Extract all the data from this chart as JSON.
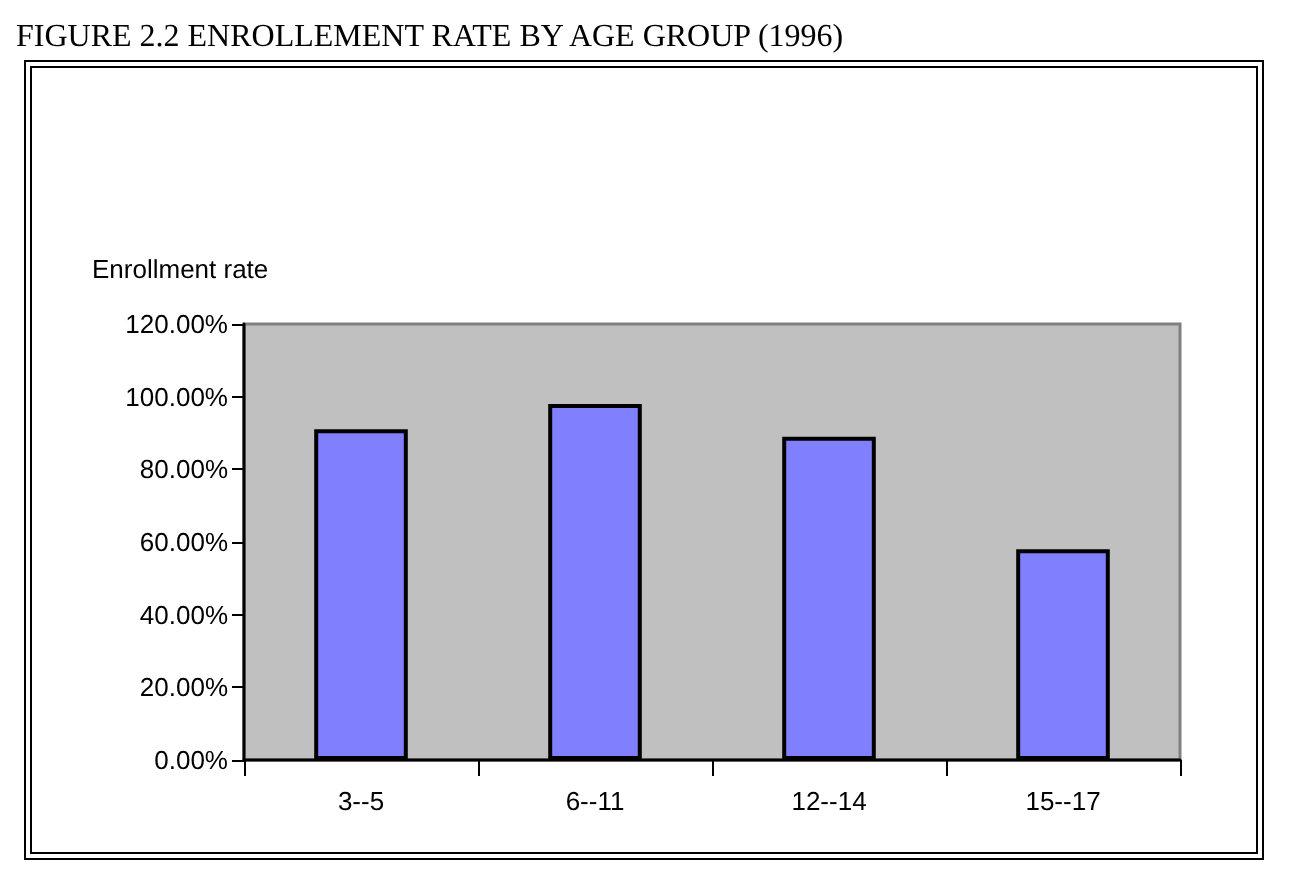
{
  "chart_data": {
    "type": "bar",
    "title": "FIGURE 2.2 ENROLLEMENT RATE BY AGE GROUP (1996)",
    "ylabel": "Enrollment rate",
    "categories": [
      "3--5",
      "6--11",
      "12--14",
      "15--17"
    ],
    "values": [
      91,
      98,
      89,
      58
    ],
    "color": "#8080ff",
    "ylim": [
      0,
      120
    ],
    "yticks": [
      {
        "value": 0,
        "label": "0.00%"
      },
      {
        "value": 20,
        "label": "20.00%"
      },
      {
        "value": 40,
        "label": "40.00%"
      },
      {
        "value": 60,
        "label": "60.00%"
      },
      {
        "value": 80,
        "label": "80.00%"
      },
      {
        "value": 100,
        "label": "100.00%"
      },
      {
        "value": 120,
        "label": "120.00%"
      }
    ],
    "grid": false
  }
}
